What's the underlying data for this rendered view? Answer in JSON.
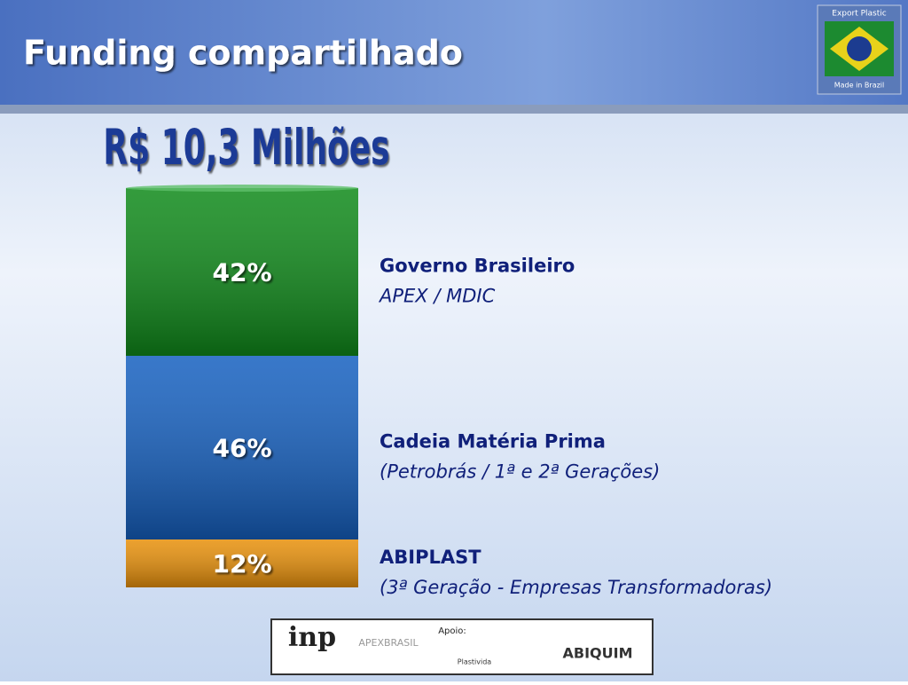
{
  "chart_data": {
    "type": "stacked-bar",
    "title": "Funding compartilhado",
    "subtitle": "R$ 10,3 Milhões",
    "series": [
      {
        "name": "ABIPLAST",
        "description": "(3ª Geração - Empresas Transformadoras)",
        "color": "#e8900a",
        "values": [
          12
        ],
        "value_labels": [
          "12%"
        ]
      },
      {
        "name": "Cadeia Matéria Prima",
        "description": "(Petrobrás / 1ª e 2ª Gerações)",
        "color": "#1560c0",
        "values": [
          46
        ],
        "value_labels": [
          "46%"
        ]
      },
      {
        "name": "Governo Brasileiro",
        "description": "APEX / MDIC",
        "color": "#0f8a1a",
        "values": [
          42
        ],
        "value_labels": [
          "42%"
        ]
      }
    ]
  },
  "logos": {
    "top": [
      "Export Plastic",
      "Made in Brazil"
    ],
    "footer": [
      "inp",
      "APEXBRASIL",
      "Apoio:",
      "Plastivida",
      "ABIQUIM"
    ]
  }
}
